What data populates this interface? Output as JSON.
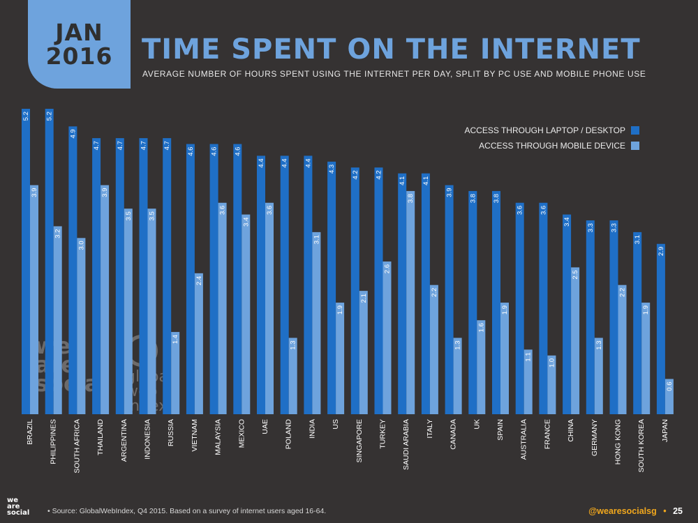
{
  "badge": {
    "month": "JAN",
    "year": "2016"
  },
  "header": {
    "title": "TIME SPENT ON THE INTERNET",
    "subtitle": "AVERAGE NUMBER OF HOURS SPENT USING THE INTERNET PER DAY, SPLIT BY PC USE AND MOBILE PHONE USE"
  },
  "colors": {
    "desktop": "#1f6fc6",
    "mobile": "#6ea3dd",
    "background": "#353232",
    "accent": "#f2a81d"
  },
  "chart_data": {
    "type": "bar",
    "categories": [
      "BRAZIL",
      "PHILIPPINES",
      "SOUTH AFRICA",
      "THAILAND",
      "ARGENTINA",
      "INDONESIA",
      "RUSSIA",
      "VIETNAM",
      "MALAYSIA",
      "MEXICO",
      "UAE",
      "POLAND",
      "INDIA",
      "US",
      "SINGAPORE",
      "TURKEY",
      "SAUDI ARABIA",
      "ITALY",
      "CANADA",
      "UK",
      "SPAIN",
      "AUSTRALIA",
      "FRANCE",
      "CHINA",
      "GERMANY",
      "HONG KONG",
      "SOUTH KOREA",
      "JAPAN"
    ],
    "series": [
      {
        "name": "ACCESS THROUGH LAPTOP / DESKTOP",
        "labels": [
          "5.2",
          "5.2",
          "4.9",
          "4.7",
          "4.7",
          "4.7",
          "4.7",
          "4.6",
          "4.6",
          "4.6",
          "4.4",
          "4.4",
          "4.4",
          "4.3",
          "4.2",
          "4.2",
          "4.1",
          "4.1",
          "3.9",
          "3.8",
          "3.8",
          "3.6",
          "3.6",
          "3.4",
          "3.3",
          "3.3",
          "3.1",
          "2.9"
        ]
      },
      {
        "name": "ACCESS THROUGH MOBILE DEVICE",
        "labels": [
          "3.9",
          "3.2",
          "3.0",
          "3.9",
          "3.5",
          "3.5",
          "1.4",
          "2.4",
          "3.6",
          "3.4",
          "3.6",
          "1.3",
          "3.1",
          "1.9",
          "2.1",
          "2.6",
          "3.8",
          "2.2",
          "1.3",
          "1.6",
          "1.9",
          "1.1",
          "1.0",
          "2.5",
          "1.3",
          "2.2",
          "1.9",
          "0.6"
        ]
      }
    ],
    "legend": "top-right",
    "grid": false,
    "ylim": [
      0,
      5.2
    ]
  },
  "watermark": {
    "brand_a": [
      "we",
      "are",
      "social"
    ],
    "brand_b": [
      "global",
      "web",
      "index"
    ]
  },
  "footer": {
    "logo": [
      "we",
      "are",
      "social"
    ],
    "source": "•  Source: GlobalWebIndex, Q4 2015. Based on a survey of internet users aged 16-64.",
    "handle": "@wearesocialsg",
    "separator": "•",
    "page": "25"
  }
}
